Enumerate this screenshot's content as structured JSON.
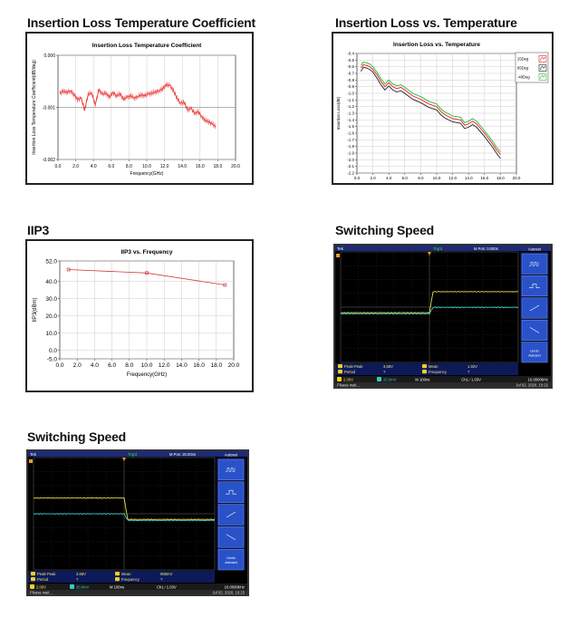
{
  "sections": {
    "s1": "Insertion Loss Temperature Coefficient",
    "s2": "Insertion Loss vs. Temperature",
    "s3": "IIP3",
    "s4": "Switching Speed",
    "s5": "Switching Speed"
  },
  "chart_data": [
    {
      "type": "line",
      "title": "Insertion Loss Temperature Coefficient",
      "xlabel": "Frequency(GHz)",
      "ylabel": "Insertion Loss Temperature Coefficient(dB/deg)",
      "xlim": [
        0,
        20
      ],
      "ylim": [
        -0.002,
        0.0
      ],
      "xticks": [
        "0.0",
        "2.0",
        "4.0",
        "6.0",
        "8.0",
        "10.0",
        "12.0",
        "14.0",
        "16.0",
        "18.0",
        "20.0"
      ],
      "yticks": [
        "0.000",
        "-0.001",
        "-0.002"
      ],
      "series": [
        {
          "color": "#e21b1b",
          "x": [
            0.2,
            0.6,
            1.0,
            1.4,
            1.8,
            2.2,
            2.6,
            3.0,
            3.4,
            3.8,
            4.2,
            4.6,
            5.0,
            5.4,
            5.8,
            6.2,
            6.6,
            7.0,
            7.4,
            7.8,
            8.2,
            8.6,
            9.0,
            9.4,
            9.8,
            10.2,
            10.6,
            11.0,
            11.4,
            11.8,
            12.2,
            12.6,
            13.0,
            13.4,
            13.8,
            14.2,
            14.6,
            15.0,
            15.4,
            15.8,
            16.2,
            16.6,
            17.0,
            17.4,
            17.8
          ],
          "y": [
            -0.00073,
            -0.00069,
            -0.00071,
            -0.00068,
            -0.00075,
            -0.00085,
            -0.00082,
            -0.00105,
            -0.00075,
            -0.00072,
            -0.00095,
            -0.00066,
            -0.00075,
            -0.00073,
            -0.0008,
            -0.00071,
            -0.00078,
            -0.00074,
            -0.00085,
            -0.0008,
            -0.00078,
            -0.00082,
            -0.00079,
            -0.00076,
            -0.00078,
            -0.00074,
            -0.00073,
            -0.0007,
            -0.00068,
            -0.00064,
            -0.00057,
            -0.00058,
            -0.00068,
            -0.00082,
            -0.00092,
            -0.0009,
            -0.00105,
            -0.00102,
            -0.00112,
            -0.00108,
            -0.00118,
            -0.00125,
            -0.00128,
            -0.00132,
            -0.00138
          ]
        }
      ]
    },
    {
      "type": "line",
      "title": "Insertion Loss vs. Temperature",
      "xlabel": "Frequency(GHz)",
      "ylabel": "Insertion Loss(dB)",
      "xlim": [
        0,
        20
      ],
      "ylim": [
        -2.2,
        -0.4
      ],
      "xticks": [
        "0.0",
        "2.0",
        "4.0",
        "6.0",
        "8.0",
        "10.0",
        "12.0",
        "14.0",
        "16.0",
        "18.0",
        "20.0"
      ],
      "yticks": [
        "-0.4",
        "-0.5",
        "-0.6",
        "-0.7",
        "-0.8",
        "-0.9",
        "-1.0",
        "-1.1",
        "-1.2",
        "-1.3",
        "-1.4",
        "-1.5",
        "-1.6",
        "-1.7",
        "-1.8",
        "-1.9",
        "-2.0",
        "-2.1",
        "-2.2"
      ],
      "legend_position": "top-right",
      "x": [
        0.5,
        0.8,
        1.2,
        1.6,
        2.0,
        2.5,
        3.0,
        3.5,
        4.0,
        4.5,
        5.0,
        5.5,
        6.0,
        7.0,
        8.0,
        9.0,
        10.0,
        10.5,
        11.0,
        12.0,
        13.0,
        13.5,
        14.0,
        14.5,
        15.0,
        16.0,
        17.0,
        17.5,
        18.0
      ],
      "series": [
        {
          "name": "25Deg",
          "color": "#e02020",
          "values": [
            -0.62,
            -0.57,
            -0.58,
            -0.6,
            -0.64,
            -0.72,
            -0.82,
            -0.9,
            -0.84,
            -0.9,
            -0.93,
            -0.91,
            -0.95,
            -1.04,
            -1.09,
            -1.16,
            -1.2,
            -1.27,
            -1.32,
            -1.38,
            -1.4,
            -1.48,
            -1.46,
            -1.42,
            -1.46,
            -1.6,
            -1.76,
            -1.85,
            -1.92
          ]
        },
        {
          "name": "85Deg",
          "color": "#222222",
          "values": [
            -0.67,
            -0.61,
            -0.62,
            -0.64,
            -0.68,
            -0.77,
            -0.87,
            -0.95,
            -0.89,
            -0.95,
            -0.98,
            -0.96,
            -1.0,
            -1.09,
            -1.14,
            -1.21,
            -1.25,
            -1.32,
            -1.37,
            -1.43,
            -1.45,
            -1.53,
            -1.51,
            -1.47,
            -1.51,
            -1.65,
            -1.81,
            -1.9,
            -1.98
          ]
        },
        {
          "name": "-40Deg",
          "color": "#2bb52b",
          "values": [
            -0.58,
            -0.53,
            -0.54,
            -0.56,
            -0.6,
            -0.68,
            -0.78,
            -0.86,
            -0.8,
            -0.86,
            -0.89,
            -0.87,
            -0.91,
            -1.0,
            -1.05,
            -1.12,
            -1.16,
            -1.23,
            -1.28,
            -1.34,
            -1.36,
            -1.44,
            -1.42,
            -1.38,
            -1.42,
            -1.56,
            -1.72,
            -1.81,
            -1.88
          ]
        }
      ]
    },
    {
      "type": "line",
      "title": "IIP3 vs. Frequency",
      "xlabel": "Frequency(GHz)",
      "ylabel": "IIP3(dBm)",
      "xlim": [
        0,
        20
      ],
      "ylim": [
        -5,
        52
      ],
      "xticks": [
        "0.0",
        "2.0",
        "4.0",
        "6.0",
        "8.0",
        "10.0",
        "12.0",
        "14.0",
        "16.0",
        "18.0",
        "20.0"
      ],
      "yticks": [
        "52.0",
        "40.0",
        "30.0",
        "20.0",
        "10.0",
        "0.0",
        "-5.0"
      ],
      "series": [
        {
          "color": "#d63a3a",
          "x": [
            1,
            10,
            19
          ],
          "values": [
            47,
            45,
            38
          ]
        }
      ]
    },
    {
      "type": "line",
      "title": "",
      "series": [
        {
          "name": "1",
          "color": "#e8e04a",
          "shape": "rise"
        },
        {
          "name": "2",
          "color": "#38c8c8",
          "shape": "rise"
        }
      ]
    },
    {
      "type": "line",
      "title": "",
      "series": [
        {
          "name": "1",
          "color": "#e8e04a",
          "shape": "fall"
        },
        {
          "name": "2",
          "color": "#38c8c8",
          "shape": "fall"
        }
      ]
    }
  ],
  "scope1": {
    "top_left": "Tek",
    "trig": "Trig'd",
    "mpos": "M Pos: 0.000s",
    "side_title": "Autoset",
    "undo": "Undo",
    "undo2": "Autoset",
    "m1_label": "Peak-Peak",
    "m1_val": "3.68V",
    "m2_label": "Period",
    "m2_val": "?",
    "m3_label": "Mean",
    "m3_val": "1.92V",
    "m4_label": "Frequency",
    "m4_val": "?",
    "ch1": "2.00V",
    "ch2": "20.0mV",
    "tb": "M 100ns",
    "trigsrc": "Ch1 ∕ 1.03V",
    "freq": "10.0000kHz",
    "status": "Please wait...",
    "date": "Jul 02, 2020, 10:22"
  },
  "scope2": {
    "top_left": "Tek",
    "trig": "Trig'd",
    "mpos": "M Pos: 20.00ns",
    "side_title": "Autoset",
    "undo": "Undo",
    "undo2": "Autoset",
    "m1_label": "Peak-Peak",
    "m1_val": "3.68V",
    "m2_label": "Period",
    "m2_val": "?",
    "m3_label": "Mean",
    "m3_val": "968mV",
    "m4_label": "Frequency",
    "m4_val": "?",
    "ch1": "2.00V",
    "ch2": "20.0mV",
    "tb": "M 100ns",
    "trigsrc": "Ch1 ∕ 1.03V",
    "freq": "10.0000kHz",
    "status": "Please wait...",
    "date": "Jul 02, 2020, 10:23"
  }
}
